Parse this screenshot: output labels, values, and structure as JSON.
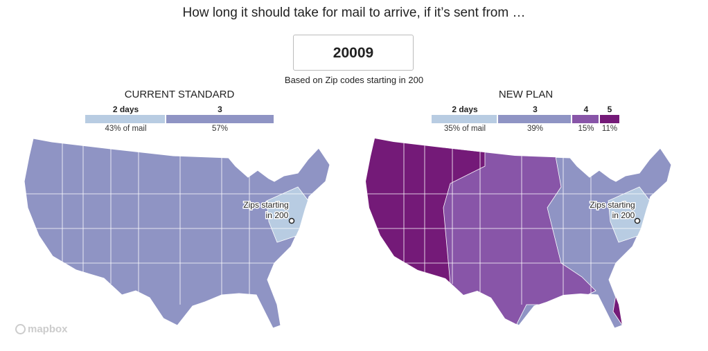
{
  "header": {
    "title": "How long it should take for mail to arrive, if it’s sent from …",
    "zip_value": "20009",
    "based_on": "Based on Zip codes starting in 200"
  },
  "colors": {
    "days2": "#b8cce2",
    "days3": "#8f94c4",
    "days4": "#8855a8",
    "days5": "#741a78"
  },
  "current": {
    "title": "CURRENT STANDARD",
    "legend": [
      {
        "label": "2 days",
        "pct": "43% of mail",
        "share": 43
      },
      {
        "label": "3",
        "pct": "57%",
        "share": 57
      }
    ],
    "annotation": [
      "Zips starting",
      "in 200"
    ]
  },
  "new_plan": {
    "title": "NEW PLAN",
    "legend": [
      {
        "label": "2 days",
        "pct": "35% of mail",
        "share": 35
      },
      {
        "label": "3",
        "pct": "39%",
        "share": 39
      },
      {
        "label": "4",
        "pct": "15%",
        "share": 15
      },
      {
        "label": "5",
        "pct": "11%",
        "share": 11
      }
    ],
    "annotation": [
      "Zips starting",
      "in 200"
    ]
  },
  "attribution": "mapbox"
}
